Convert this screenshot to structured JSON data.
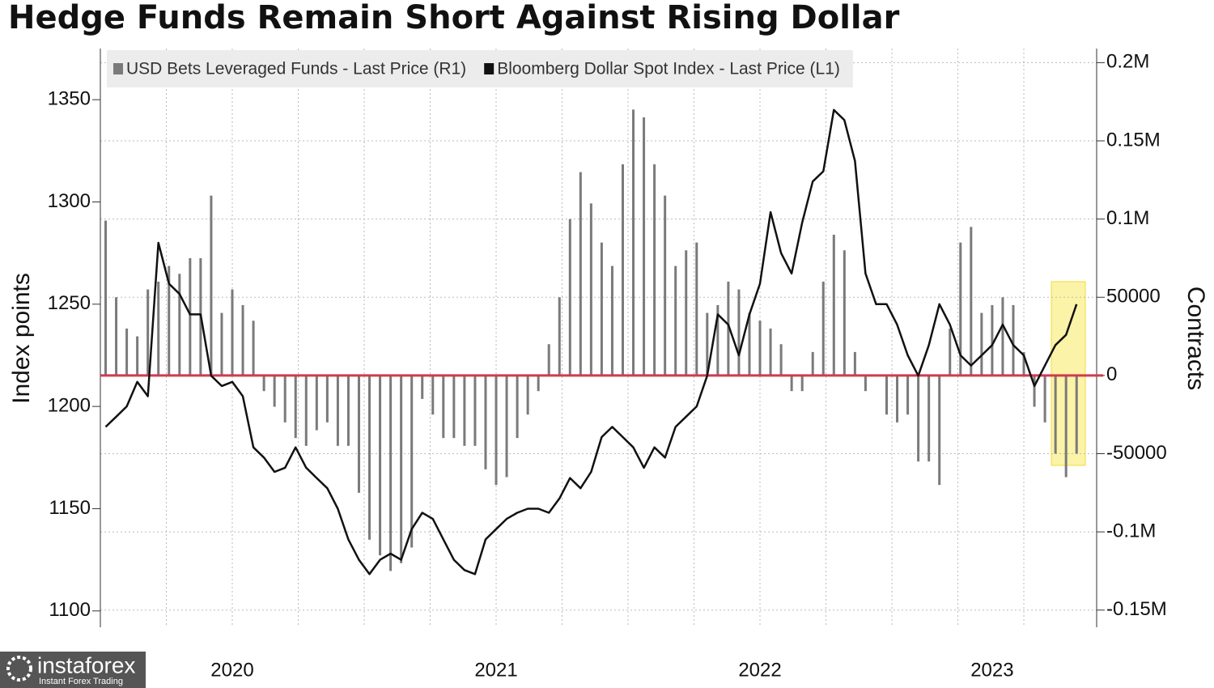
{
  "chart_data": {
    "type": "bar-line",
    "title": "Hedge Funds Remain Short Against Rising Dollar",
    "ylabel": "Index points",
    "y2label": "Contracts",
    "x": [
      2020.02,
      2020.06,
      2020.1,
      2020.14,
      2020.18,
      2020.22,
      2020.26,
      2020.3,
      2020.34,
      2020.38,
      2020.42,
      2020.46,
      2020.5,
      2020.54,
      2020.58,
      2020.62,
      2020.66,
      2020.7,
      2020.74,
      2020.78,
      2020.82,
      2020.86,
      2020.9,
      2020.94,
      2020.98,
      2021.02,
      2021.06,
      2021.1,
      2021.14,
      2021.18,
      2021.22,
      2021.26,
      2021.3,
      2021.34,
      2021.38,
      2021.42,
      2021.46,
      2021.5,
      2021.54,
      2021.58,
      2021.62,
      2021.66,
      2021.7,
      2021.74,
      2021.78,
      2021.82,
      2021.86,
      2021.9,
      2021.94,
      2021.98,
      2022.02,
      2022.06,
      2022.1,
      2022.14,
      2022.18,
      2022.22,
      2022.26,
      2022.3,
      2022.34,
      2022.38,
      2022.42,
      2022.46,
      2022.5,
      2022.54,
      2022.58,
      2022.62,
      2022.66,
      2022.7,
      2022.74,
      2022.78,
      2022.82,
      2022.86,
      2022.9,
      2022.94,
      2022.98,
      2023.02,
      2023.06,
      2023.1,
      2023.14,
      2023.18,
      2023.22,
      2023.26,
      2023.3,
      2023.34,
      2023.38,
      2023.42,
      2023.46,
      2023.5,
      2023.54,
      2023.58,
      2023.62,
      2023.66,
      2023.7
    ],
    "xlim": [
      2020,
      2023.776
    ],
    "xticks": [
      {
        "value": 2020.5,
        "label": "2020"
      },
      {
        "value": 2021.5,
        "label": "2021"
      },
      {
        "value": 2022.5,
        "label": "2022"
      },
      {
        "value": 2023.38,
        "label": "2023"
      }
    ],
    "x_gridlines": [
      2020.25,
      2020.5,
      2020.75,
      2021,
      2021.25,
      2021.5,
      2021.75,
      2022,
      2022.25,
      2022.5,
      2022.75,
      2023,
      2023.25,
      2023.5
    ],
    "ylim": [
      1092,
      1375
    ],
    "yticks": [
      1100,
      1150,
      1200,
      1250,
      1300,
      1350
    ],
    "y2lim": [
      -161000,
      209000
    ],
    "y2ticks": [
      {
        "value": 200000,
        "label": "0.2M"
      },
      {
        "value": 150000,
        "label": "0.15M"
      },
      {
        "value": 100000,
        "label": "0.1M"
      },
      50000,
      0,
      -50000,
      {
        "value": -100000,
        "label": "-0.1M"
      },
      {
        "value": -150000,
        "label": "-0.15M"
      }
    ],
    "grid": true,
    "legend": "top-left",
    "zero_line_color": "#d23a4e",
    "series": [
      {
        "name": "USD Bets Leveraged Funds - Last Price (R1)",
        "type": "bar",
        "axis": "y2",
        "color": "#7a7a7a",
        "values": [
          99000,
          50000,
          30000,
          25000,
          55000,
          60000,
          70000,
          65000,
          75000,
          75000,
          115000,
          40000,
          55000,
          45000,
          35000,
          -10000,
          -20000,
          -30000,
          -40000,
          -45000,
          -35000,
          -30000,
          -45000,
          -45000,
          -75000,
          -105000,
          -115000,
          -125000,
          -120000,
          -110000,
          -15000,
          -25000,
          -40000,
          -40000,
          -45000,
          -45000,
          -60000,
          -70000,
          -65000,
          -40000,
          -25000,
          -10000,
          20000,
          50000,
          100000,
          130000,
          110000,
          85000,
          70000,
          135000,
          170000,
          165000,
          135000,
          115000,
          70000,
          80000,
          85000,
          40000,
          45000,
          60000,
          55000,
          40000,
          35000,
          30000,
          20000,
          -10000,
          -10000,
          15000,
          60000,
          90000,
          80000,
          15000,
          -10000,
          0,
          -25000,
          -30000,
          -25000,
          -55000,
          -55000,
          -70000,
          30000,
          85000,
          95000,
          40000,
          45000,
          50000,
          45000,
          15000,
          -20000,
          -30000,
          -50000,
          -65000,
          -50000
        ]
      },
      {
        "name": "Bloomberg Dollar Spot Index - Last Price (L1)",
        "type": "line",
        "color": "#111111",
        "values": [
          1190,
          1195,
          1200,
          1212,
          1205,
          1280,
          1260,
          1255,
          1245,
          1245,
          1215,
          1210,
          1212,
          1205,
          1180,
          1175,
          1168,
          1170,
          1180,
          1170,
          1165,
          1160,
          1150,
          1135,
          1125,
          1118,
          1125,
          1128,
          1125,
          1140,
          1148,
          1145,
          1135,
          1125,
          1120,
          1118,
          1135,
          1140,
          1145,
          1148,
          1150,
          1150,
          1148,
          1155,
          1165,
          1160,
          1168,
          1185,
          1190,
          1185,
          1180,
          1170,
          1180,
          1175,
          1190,
          1195,
          1200,
          1215,
          1245,
          1240,
          1225,
          1245,
          1260,
          1295,
          1275,
          1265,
          1290,
          1310,
          1315,
          1345,
          1340,
          1320,
          1265,
          1250,
          1250,
          1240,
          1225,
          1215,
          1230,
          1250,
          1240,
          1225,
          1220,
          1225,
          1230,
          1240,
          1230,
          1225,
          1210,
          1220,
          1230,
          1235,
          1250
        ]
      }
    ]
  },
  "watermark": {
    "brand": "instaforex",
    "tagline": "Instant Forex Trading"
  }
}
